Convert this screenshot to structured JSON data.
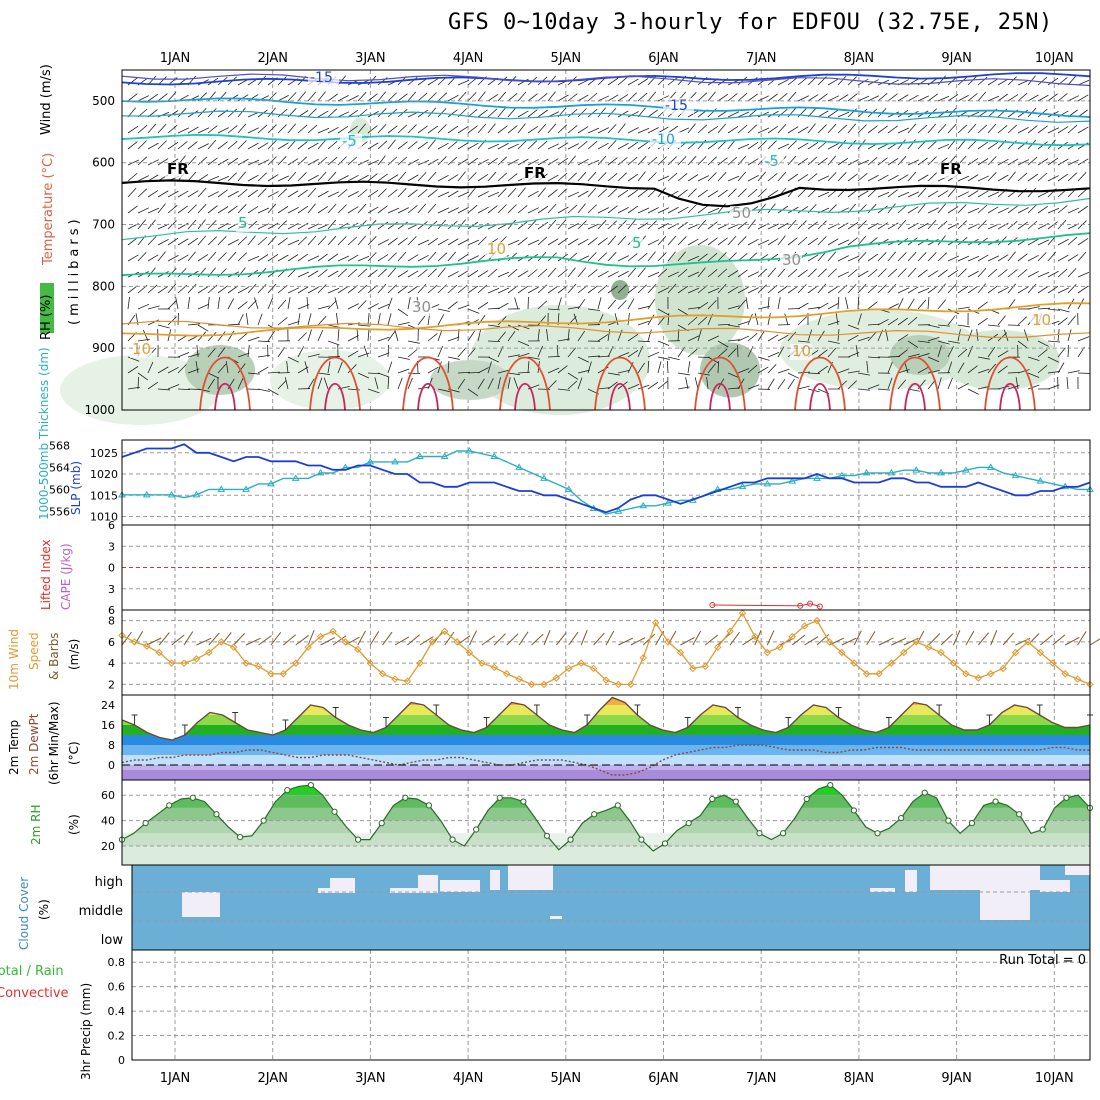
{
  "title": "GFS 0~10day 3-hourly for EDFOU (32.75E, 25N)",
  "days": [
    "1JAN",
    "2JAN",
    "3JAN",
    "4JAN",
    "5JAN",
    "6JAN",
    "7JAN",
    "8JAN",
    "9JAN",
    "10JAN"
  ],
  "colors": {
    "frame": "#000000",
    "grid": "#9a9a9a",
    "slp": "#1c3fd1",
    "thickness": "#2ab0c0",
    "wind_speed": "#e09a30",
    "barb": "#7a5a2a",
    "dewpoint": "#8a4a3a",
    "rh_fill": "#33cc33",
    "cloud": "#6baed6",
    "cloud_gap": "#f2eef8",
    "lifted": "#e03030"
  },
  "panel_labels": {
    "upper_wind": "Wind (m/s)",
    "upper_temp": "Temperature (°C)",
    "upper_rh": "RH (%)",
    "upper_pressure": "(millibars)",
    "thickness": "1000-500mb Thickness (dm)",
    "slp": "SLP (mb)",
    "lifted": "Lifted Index",
    "cape": "CAPE (J/kg)",
    "wind10_a": "10m Wind",
    "wind10_b": "Speed",
    "wind10_c": "& Barbs",
    "wind10_unit": "(m/s)",
    "temp_a": "2m Temp",
    "temp_b": "2m DewPt",
    "temp_c": "(6hr Min/Max)",
    "temp_unit": "(°C)",
    "rh2m": "2m RH",
    "rh2m_unit": "(%)",
    "cloud": "Cloud Cover",
    "cloud_unit": "(%)",
    "precip_a": "Total / Rain",
    "precip_b": "Convective",
    "precip_c": "3hr Precip (mm)",
    "run_total": "Run Total = 0"
  },
  "contour_labels": [
    "-15",
    "-15",
    "-10",
    "-5",
    "-5",
    "FR",
    "FR",
    "FR",
    "5",
    "5",
    "10",
    "10",
    "10",
    "10",
    "30",
    "30",
    "50"
  ],
  "chart_data": [
    {
      "type": "contour",
      "name": "upper_air",
      "y_axis": "pressure (millibars)",
      "ylim": [
        1000,
        450
      ],
      "yticks": [
        500,
        600,
        700,
        800,
        900,
        1000
      ],
      "isotherms_c": [
        {
          "label": "-15",
          "p_start": 470,
          "p_end": 458
        },
        {
          "label": "-10",
          "p_start": 497,
          "p_end": 522
        },
        {
          "label": "-5",
          "p_start": 558,
          "p_end": 568
        },
        {
          "label": "FR",
          "p_start": 632,
          "p_end": 643
        },
        {
          "label": "5",
          "p_start": 785,
          "p_end": 718
        },
        {
          "label": "10",
          "p_start": 880,
          "p_end": 830
        }
      ]
    },
    {
      "type": "line",
      "name": "thickness_slp",
      "series": [
        {
          "name": "SLP",
          "axis": "left",
          "ylim": [
            1008,
            1028
          ],
          "yticks": [
            1010,
            1015,
            1020,
            1025
          ],
          "values": [
            1024,
            1025,
            1026,
            1026,
            1026,
            1027,
            1025,
            1025,
            1024,
            1023,
            1024,
            1024,
            1023,
            1023,
            1023,
            1022,
            1022,
            1021,
            1021,
            1022,
            1022,
            1021,
            1020,
            1020,
            1018,
            1018,
            1017,
            1017,
            1018,
            1018,
            1018,
            1017,
            1016,
            1016,
            1015,
            1015,
            1014,
            1013,
            1012,
            1011,
            1012,
            1014,
            1015,
            1015,
            1014,
            1013,
            1014,
            1015,
            1016,
            1017,
            1018,
            1018,
            1019,
            1019,
            1019,
            1019,
            1020,
            1019,
            1019,
            1018,
            1018,
            1018,
            1019,
            1019,
            1018,
            1018,
            1017,
            1017,
            1017,
            1018,
            1017,
            1016,
            1015,
            1015,
            1016,
            1016,
            1017,
            1017,
            1018
          ]
        },
        {
          "name": "Thickness",
          "axis": "right",
          "ylim": [
            553.5,
            569
          ],
          "yticks": [
            556,
            560,
            564,
            568
          ],
          "values": [
            559,
            559,
            559,
            559,
            559,
            558.5,
            559,
            560,
            560,
            560,
            560,
            561,
            561,
            562,
            562,
            562,
            563,
            563,
            564,
            564,
            565,
            565,
            565,
            565,
            566,
            566,
            566,
            567,
            567,
            566.5,
            566,
            565,
            564,
            563,
            562,
            561,
            560,
            558,
            556.5,
            555.5,
            556,
            556.5,
            557,
            557,
            557.5,
            558,
            558,
            559,
            560,
            560,
            560.5,
            561,
            561,
            561,
            561.5,
            562,
            562,
            562,
            562.5,
            562.5,
            563,
            563,
            563,
            563.5,
            563.5,
            563,
            563,
            563,
            563.5,
            564,
            564,
            563,
            562.5,
            562,
            561.5,
            561,
            560.5,
            560,
            560
          ]
        }
      ]
    },
    {
      "type": "line",
      "name": "lifted_cape",
      "series": [
        {
          "name": "Lifted Index",
          "ylim": [
            6,
            -6
          ],
          "yticks": [
            -6,
            -3,
            0,
            3,
            6
          ],
          "points": [
            {
              "day": 5.5,
              "value": 5.3
            },
            {
              "day": 6.4,
              "value": 5.4
            },
            {
              "day": 6.5,
              "value": 5.1
            },
            {
              "day": 6.6,
              "value": 5.5
            }
          ]
        }
      ]
    },
    {
      "type": "line",
      "name": "wind10m",
      "ylim": [
        1,
        9
      ],
      "yticks": [
        2,
        4,
        6,
        8
      ],
      "values": [
        6.6,
        6,
        5.6,
        5,
        4,
        4,
        4.4,
        5,
        6,
        5.5,
        4,
        3.7,
        3,
        3,
        4,
        5.5,
        6.5,
        7,
        6,
        5.3,
        4,
        3,
        2.5,
        2.3,
        4,
        6,
        7,
        6,
        5,
        4,
        3.6,
        3,
        2.5,
        2,
        2,
        2.6,
        3.5,
        4,
        3.5,
        2.4,
        2,
        2,
        4.5,
        7.8,
        6,
        5,
        3.5,
        3.7,
        5.5,
        7,
        8.7,
        6.5,
        5,
        5.5,
        6.5,
        7.5,
        8,
        6,
        5,
        4,
        3,
        3,
        4,
        5,
        6,
        5.5,
        5,
        4,
        3,
        2.6,
        3,
        3.5,
        5,
        6,
        5,
        4,
        3,
        2.5,
        2
      ]
    },
    {
      "type": "area",
      "name": "temp2m",
      "ylim": [
        -6,
        28
      ],
      "yticks": [
        0,
        8,
        16,
        24
      ],
      "series": [
        {
          "name": "2m Temp",
          "values": [
            18,
            16,
            13,
            11,
            10,
            12,
            17,
            21,
            20,
            17,
            14,
            13,
            12,
            14,
            19,
            24,
            23,
            19,
            16,
            14,
            13,
            15,
            20,
            25,
            24,
            20,
            16,
            14,
            13,
            15,
            20,
            25,
            24,
            20,
            16,
            14,
            13,
            16,
            22,
            27,
            25,
            20,
            16,
            14,
            13,
            15,
            20,
            24,
            23,
            19,
            16,
            14,
            13,
            15,
            20,
            24,
            23,
            19,
            16,
            14,
            13,
            15,
            20,
            25,
            24,
            20,
            16,
            14,
            14,
            16,
            21,
            24,
            23,
            20,
            17,
            15,
            15,
            16
          ]
        },
        {
          "name": "2m DewPt",
          "values": [
            1,
            2,
            2,
            3,
            3,
            4,
            4,
            4,
            5,
            5,
            6,
            6,
            5,
            4,
            3,
            3,
            4,
            4,
            4,
            3,
            2,
            1,
            0,
            1,
            2,
            2,
            3,
            3,
            2,
            1,
            0,
            0,
            1,
            2,
            2,
            2,
            1,
            0,
            -2,
            -4,
            -4,
            -3,
            -1,
            2,
            4,
            5,
            6,
            7,
            7,
            8,
            8,
            8,
            7,
            6,
            6,
            6,
            5,
            5,
            6,
            6,
            7,
            7,
            7,
            6,
            6,
            6,
            6,
            6,
            6,
            6,
            6,
            6,
            6,
            6,
            7,
            7,
            6,
            6
          ]
        }
      ]
    },
    {
      "type": "area",
      "name": "rh2m",
      "ylim": [
        5,
        72
      ],
      "yticks": [
        20,
        40,
        60
      ],
      "values": [
        25,
        30,
        38,
        45,
        52,
        57,
        58,
        55,
        45,
        35,
        27,
        28,
        40,
        55,
        64,
        67,
        68,
        60,
        47,
        35,
        25,
        25,
        38,
        52,
        58,
        57,
        52,
        40,
        25,
        20,
        33,
        48,
        58,
        58,
        55,
        42,
        28,
        17,
        25,
        38,
        45,
        48,
        52,
        40,
        25,
        16,
        22,
        32,
        38,
        44,
        57,
        60,
        55,
        42,
        30,
        25,
        30,
        42,
        57,
        65,
        68,
        60,
        48,
        35,
        30,
        34,
        42,
        55,
        62,
        58,
        40,
        30,
        38,
        52,
        55,
        52,
        45,
        30,
        33,
        50,
        58,
        60,
        50
      ]
    },
    {
      "type": "heatmap",
      "name": "cloud_cover",
      "levels": [
        "high",
        "middle",
        "low"
      ]
    },
    {
      "type": "line",
      "name": "precip3h",
      "ylim": [
        0,
        0.9
      ],
      "yticks": [
        0,
        0.2,
        0.4,
        0.6,
        0.8
      ],
      "values": []
    }
  ]
}
